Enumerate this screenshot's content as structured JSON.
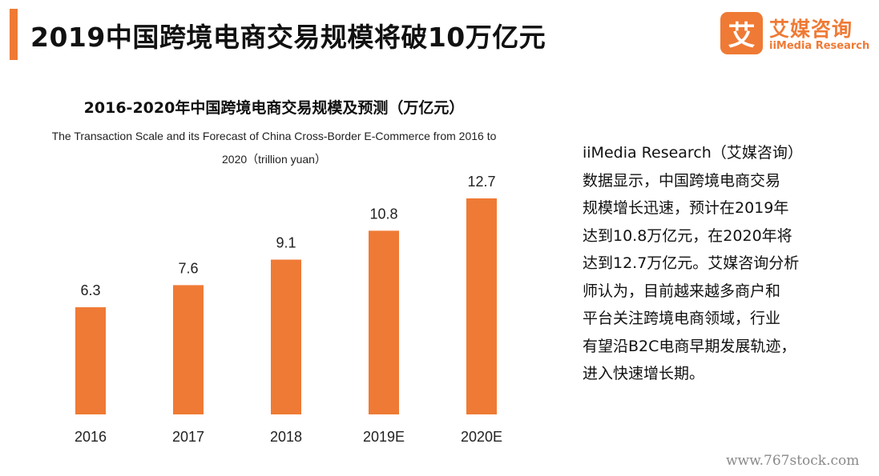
{
  "header": {
    "title": "2019中国跨境电商交易规模将破10万亿元",
    "accent_color": "#ef7a35"
  },
  "logo": {
    "mark_char": "艾",
    "name_cn": "艾媒咨询",
    "name_en": "iiMedia Research",
    "color": "#ef7a35"
  },
  "chart_data": {
    "type": "bar",
    "title": "2016-2020年中国跨境电商交易规模及预测（万亿元）",
    "subtitle": "The Transaction Scale and its Forecast of China Cross-Border E-Commerce from 2016 to 2020（trillion yuan）",
    "categories": [
      "2016",
      "2017",
      "2018",
      "2019E",
      "2020E"
    ],
    "values": [
      6.3,
      7.6,
      9.1,
      10.8,
      12.7
    ],
    "data_labels": [
      "6.3",
      "7.6",
      "9.1",
      "10.8",
      "12.7"
    ],
    "bar_color": "#ef7a35",
    "xlabel": "",
    "ylabel": "",
    "ylim": [
      0,
      12.7
    ],
    "grid": false,
    "legend": "none"
  },
  "summary": {
    "text": "iiMedia Research（艾媒咨询）\n数据显示，中国跨境电商交易\n规模增长迅速，预计在2019年\n达到10.8万亿元，在2020年将\n达到12.7万亿元。艾媒咨询分析\n师认为，目前越来越多商户和\n平台关注跨境电商领域，行业\n有望沿B2C电商早期发展轨迹，\n进入快速增长期。"
  },
  "watermark": "www.767stock.com"
}
